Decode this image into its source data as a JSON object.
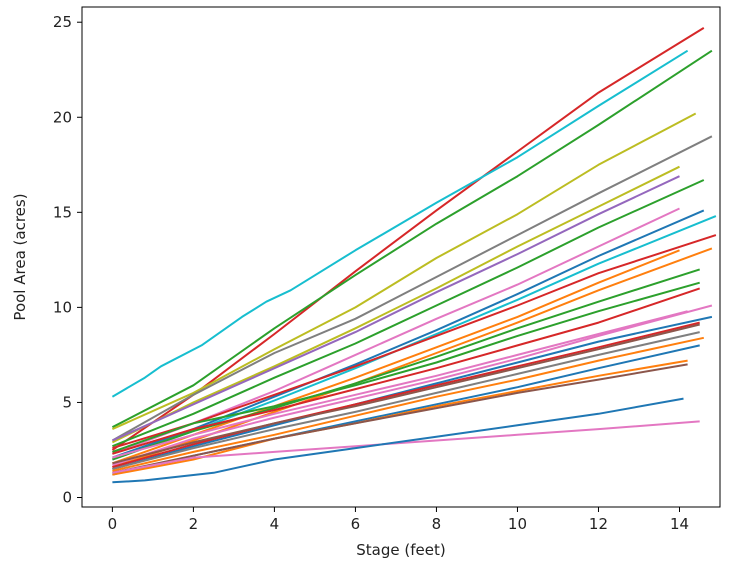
{
  "chart_data": {
    "type": "line",
    "title": "",
    "xlabel": "Stage (feet)",
    "ylabel": "Pool Area (acres)",
    "xlim": [
      -0.75,
      15.0
    ],
    "ylim": [
      -0.5,
      25.8
    ],
    "xticks": [
      0,
      2,
      4,
      6,
      8,
      10,
      12,
      14
    ],
    "yticks": [
      0,
      5,
      10,
      15,
      20,
      25
    ],
    "grid": false,
    "legend": "none",
    "series": [
      {
        "color": "#d62728",
        "x": [
          0,
          2,
          4,
          6,
          8,
          10,
          12,
          14.6
        ],
        "y": [
          2.5,
          5.4,
          8.6,
          11.9,
          15.1,
          18.2,
          21.3,
          24.7
        ]
      },
      {
        "color": "#17becf",
        "x": [
          0,
          0.8,
          1.2,
          2.2,
          3.2,
          3.8,
          4.4,
          6,
          8,
          10,
          12,
          14.2
        ],
        "y": [
          5.3,
          6.3,
          6.9,
          8.0,
          9.5,
          10.3,
          10.9,
          13.0,
          15.5,
          17.9,
          20.6,
          23.5
        ]
      },
      {
        "color": "#2ca02c",
        "x": [
          0,
          2,
          4,
          6,
          8,
          10,
          12,
          14.8
        ],
        "y": [
          3.7,
          5.9,
          8.9,
          11.7,
          14.4,
          16.9,
          19.6,
          23.5
        ]
      },
      {
        "color": "#bcbd22",
        "x": [
          0,
          2,
          4,
          6,
          8,
          10,
          12,
          14.4
        ],
        "y": [
          3.6,
          5.5,
          7.8,
          10.0,
          12.6,
          14.9,
          17.5,
          20.2
        ]
      },
      {
        "color": "#7f7f7f",
        "x": [
          0,
          2,
          4,
          6,
          8,
          10,
          12,
          14.8
        ],
        "y": [
          3.0,
          5.4,
          7.6,
          9.4,
          11.6,
          13.8,
          16.0,
          19.0
        ]
      },
      {
        "color": "#bcbd22",
        "x": [
          0,
          2,
          4,
          6,
          8,
          10,
          12,
          14.0
        ],
        "y": [
          2.9,
          5.0,
          6.9,
          8.9,
          11.0,
          13.2,
          15.3,
          17.4
        ]
      },
      {
        "color": "#9467bd",
        "x": [
          0,
          2,
          4,
          6,
          8,
          10,
          12,
          14.0
        ],
        "y": [
          3.0,
          4.9,
          6.8,
          8.7,
          10.8,
          12.8,
          14.9,
          16.9
        ]
      },
      {
        "color": "#2ca02c",
        "x": [
          0,
          2,
          4,
          6,
          8,
          10,
          12,
          14.6
        ],
        "y": [
          2.7,
          4.4,
          6.3,
          8.1,
          10.1,
          12.1,
          14.2,
          16.7
        ]
      },
      {
        "color": "#e377c2",
        "x": [
          0,
          2,
          4,
          6,
          8,
          10,
          12,
          14.0
        ],
        "y": [
          2.3,
          3.9,
          5.6,
          7.5,
          9.4,
          11.2,
          13.2,
          15.2
        ]
      },
      {
        "color": "#1f77b4",
        "x": [
          0,
          2,
          4,
          6,
          8,
          10,
          12,
          14.6
        ],
        "y": [
          2.1,
          3.6,
          5.3,
          7.0,
          8.8,
          10.7,
          12.7,
          15.1
        ]
      },
      {
        "color": "#17becf",
        "x": [
          0,
          2,
          4,
          6,
          8,
          10,
          12,
          14.9
        ],
        "y": [
          2.0,
          3.5,
          5.1,
          6.8,
          8.6,
          10.4,
          12.3,
          14.8
        ]
      },
      {
        "color": "#d62728",
        "x": [
          0,
          2,
          4,
          6,
          8,
          10,
          12,
          14.9
        ],
        "y": [
          2.6,
          3.9,
          5.4,
          6.9,
          8.5,
          10.1,
          11.8,
          13.8
        ]
      },
      {
        "color": "#ff7f0e",
        "x": [
          0,
          2,
          4,
          6,
          8,
          10,
          12,
          14.0
        ],
        "y": [
          1.8,
          3.3,
          4.8,
          6.3,
          7.9,
          9.5,
          11.3,
          13.0
        ]
      },
      {
        "color": "#ff7f0e",
        "x": [
          0,
          2,
          4,
          6,
          8,
          10,
          12,
          14.8
        ],
        "y": [
          1.6,
          3.0,
          4.5,
          6.0,
          7.6,
          9.2,
          10.9,
          13.1
        ]
      },
      {
        "color": "#2ca02c",
        "x": [
          0,
          2,
          4,
          6,
          8,
          10,
          12,
          14.5
        ],
        "y": [
          2.0,
          3.5,
          4.7,
          6.0,
          7.4,
          8.9,
          10.3,
          12.0
        ]
      },
      {
        "color": "#2ca02c",
        "x": [
          0,
          2,
          4,
          6,
          8,
          10,
          12,
          14.5
        ],
        "y": [
          2.4,
          3.9,
          4.8,
          5.9,
          7.1,
          8.5,
          9.8,
          11.3
        ]
      },
      {
        "color": "#d62728",
        "x": [
          0,
          2,
          4,
          6,
          8,
          10,
          12,
          14.5
        ],
        "y": [
          2.3,
          3.6,
          4.6,
          5.7,
          6.8,
          8.0,
          9.2,
          11.0
        ]
      },
      {
        "color": "#e377c2",
        "x": [
          0,
          2,
          4,
          6,
          8,
          10,
          12,
          14.8
        ],
        "y": [
          1.7,
          3.1,
          4.2,
          5.2,
          6.2,
          7.3,
          8.5,
          10.1
        ]
      },
      {
        "color": "#e377c2",
        "x": [
          0,
          2,
          4,
          6,
          8,
          10,
          12,
          14.2
        ],
        "y": [
          2.1,
          3.3,
          4.4,
          5.4,
          6.4,
          7.5,
          8.6,
          9.8
        ]
      },
      {
        "color": "#1f77b4",
        "x": [
          0,
          2,
          4,
          6,
          8,
          10,
          12,
          14.8
        ],
        "y": [
          1.5,
          2.7,
          3.8,
          4.9,
          6.0,
          7.1,
          8.2,
          9.5
        ]
      },
      {
        "color": "#d62728",
        "x": [
          0,
          2,
          4,
          6,
          8,
          10,
          12,
          14.5
        ],
        "y": [
          1.6,
          2.8,
          3.9,
          4.9,
          5.9,
          6.9,
          7.9,
          9.2
        ]
      },
      {
        "color": "#8c564b",
        "x": [
          0,
          2,
          4,
          6,
          8,
          10,
          12,
          14.5
        ],
        "y": [
          1.8,
          2.9,
          3.9,
          4.8,
          5.8,
          6.8,
          7.8,
          9.1
        ]
      },
      {
        "color": "#7f7f7f",
        "x": [
          0,
          2,
          4,
          6,
          8,
          10,
          12,
          14.5
        ],
        "y": [
          1.5,
          2.6,
          3.6,
          4.5,
          5.5,
          6.5,
          7.5,
          8.7
        ]
      },
      {
        "color": "#ff7f0e",
        "x": [
          0,
          2,
          4,
          6,
          8,
          10,
          12,
          14.6
        ],
        "y": [
          1.4,
          2.4,
          3.3,
          4.3,
          5.3,
          6.2,
          7.2,
          8.4
        ]
      },
      {
        "color": "#1f77b4",
        "x": [
          0,
          2,
          4,
          6,
          8,
          10,
          12,
          14.5
        ],
        "y": [
          1.2,
          2.2,
          3.1,
          4.0,
          4.9,
          5.8,
          6.8,
          8.0
        ]
      },
      {
        "color": "#ff7f0e",
        "x": [
          0,
          2,
          4,
          6,
          8,
          10,
          12,
          14.2
        ],
        "y": [
          1.2,
          2.0,
          3.1,
          3.9,
          4.8,
          5.6,
          6.4,
          7.2
        ]
      },
      {
        "color": "#8c564b",
        "x": [
          0,
          2,
          4,
          6,
          8,
          10,
          12,
          14.2
        ],
        "y": [
          1.3,
          2.2,
          3.1,
          3.9,
          4.7,
          5.5,
          6.2,
          7.0
        ]
      },
      {
        "color": "#e377c2",
        "x": [
          0,
          2,
          4,
          6,
          8,
          10,
          12,
          14.5
        ],
        "y": [
          1.3,
          2.1,
          2.4,
          2.7,
          3.0,
          3.3,
          3.6,
          4.0
        ]
      },
      {
        "color": "#1f77b4",
        "x": [
          0,
          0.8,
          2.5,
          4,
          6,
          8,
          10,
          12,
          14.1
        ],
        "y": [
          0.8,
          0.9,
          1.3,
          2.0,
          2.6,
          3.2,
          3.8,
          4.4,
          5.2
        ]
      }
    ]
  }
}
